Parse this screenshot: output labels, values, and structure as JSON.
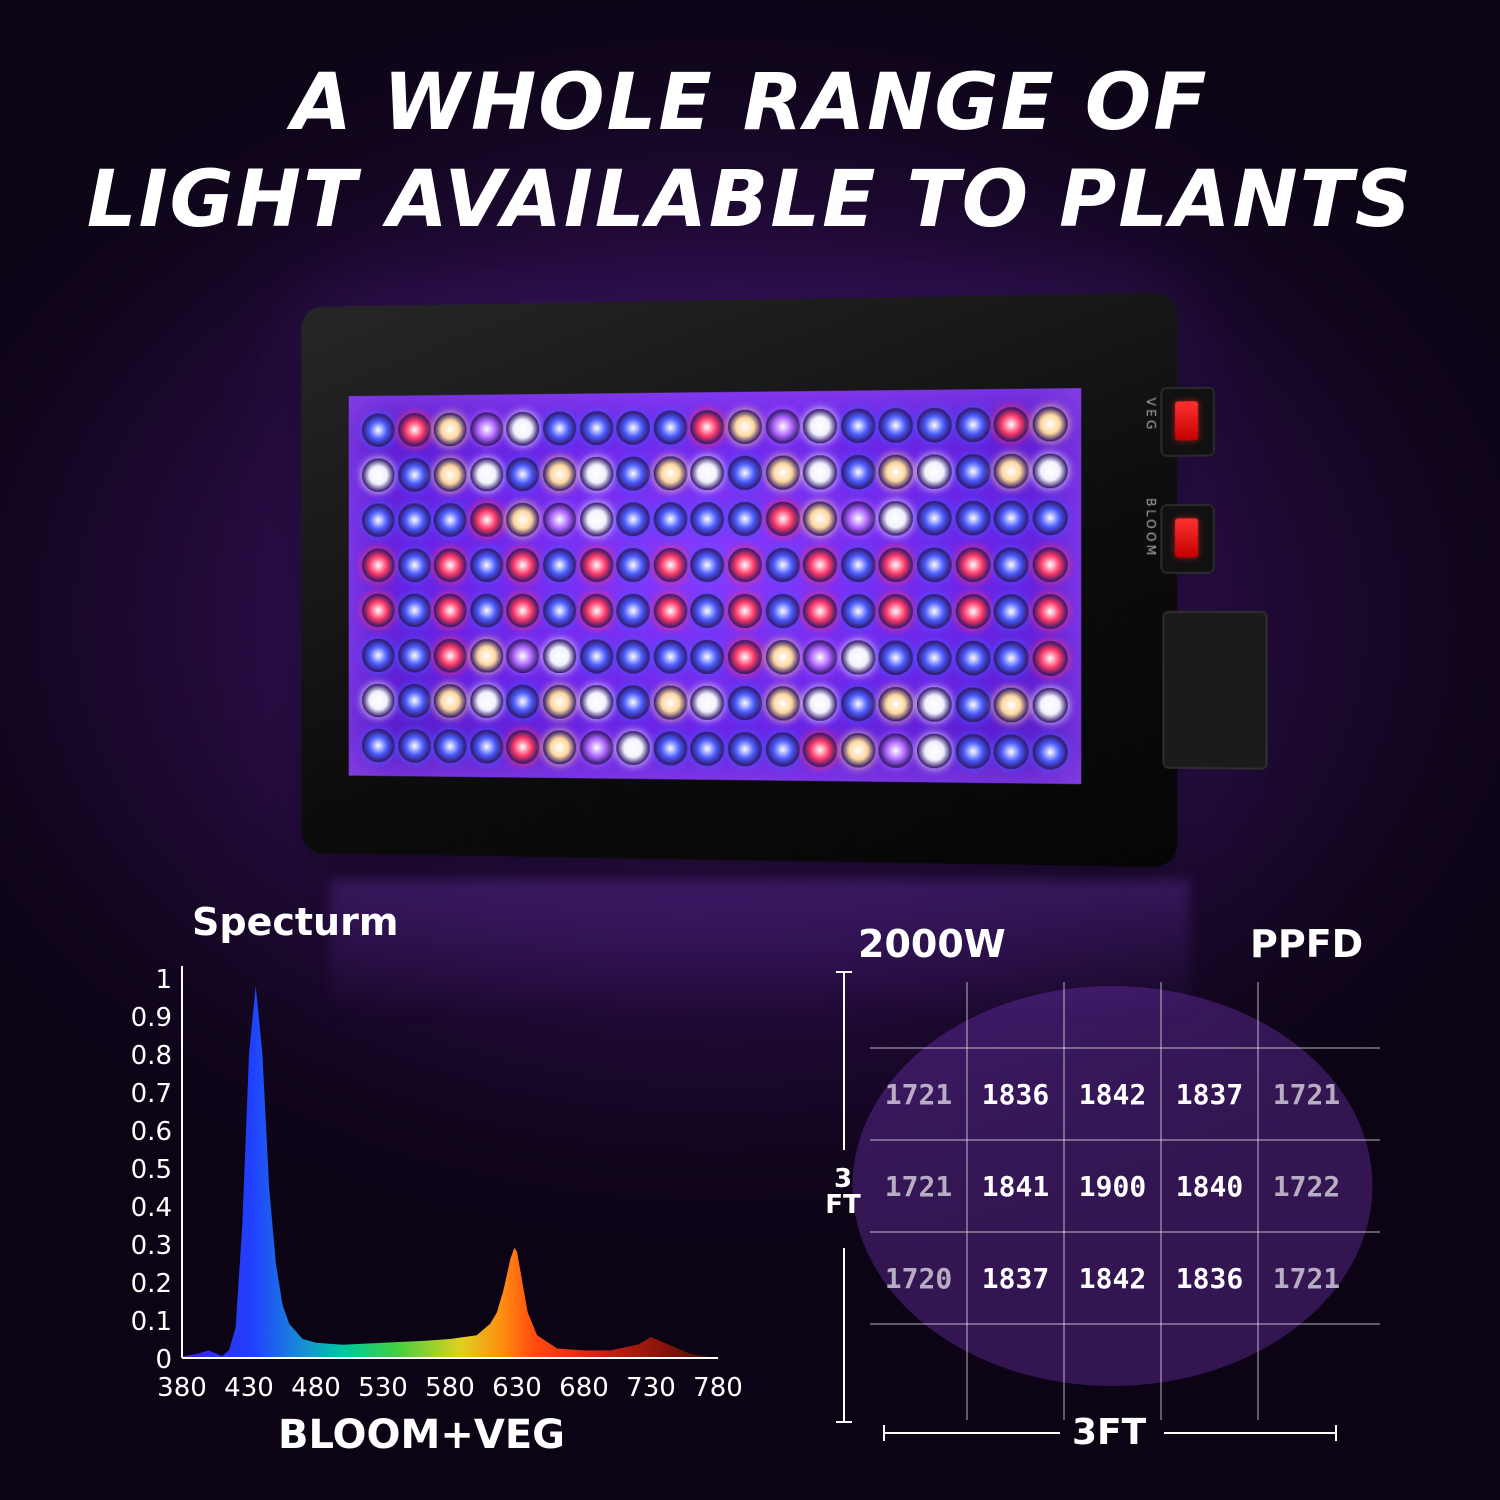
{
  "headline": {
    "line1": "A WHOLE RANGE OF",
    "line2": "LIGHT AVAILABLE TO PLANTS"
  },
  "lamp": {
    "switch_labels": [
      "VEG",
      "BLOOM"
    ],
    "led_colors": {
      "blue": "#4b5cff",
      "red": "#ff3a6a",
      "white": "#f2f2ff",
      "warm": "#ffd8a0",
      "purple": "#b066ff"
    }
  },
  "chart_data": [
    {
      "type": "area",
      "title": "Specturm",
      "xlabel": "BLOOM+VEG",
      "ylabel": "",
      "xlim": [
        380,
        780
      ],
      "ylim": [
        0,
        1
      ],
      "x_ticks": [
        380,
        430,
        480,
        530,
        580,
        630,
        680,
        730,
        780
      ],
      "y_ticks": [
        0,
        0.1,
        0.2,
        0.3,
        0.4,
        0.5,
        0.6,
        0.7,
        0.8,
        0.9,
        1
      ],
      "y_tick_labels": [
        "0",
        "0.1",
        "0.2",
        "0.3",
        "0.4",
        "0.5",
        "0.6",
        "0.7",
        "0.8",
        "0.9",
        "1"
      ],
      "grid": false,
      "x": [
        380,
        390,
        400,
        410,
        415,
        420,
        425,
        430,
        435,
        440,
        445,
        450,
        455,
        460,
        470,
        480,
        500,
        530,
        560,
        580,
        600,
        610,
        615,
        620,
        625,
        628,
        630,
        633,
        638,
        645,
        660,
        680,
        700,
        720,
        730,
        740,
        760,
        780
      ],
      "y": [
        0.005,
        0.01,
        0.02,
        0.005,
        0.02,
        0.08,
        0.35,
        0.8,
        0.98,
        0.8,
        0.45,
        0.25,
        0.14,
        0.09,
        0.05,
        0.04,
        0.035,
        0.04,
        0.045,
        0.05,
        0.06,
        0.09,
        0.12,
        0.18,
        0.26,
        0.29,
        0.28,
        0.22,
        0.12,
        0.06,
        0.025,
        0.02,
        0.02,
        0.035,
        0.055,
        0.04,
        0.01,
        0.0
      ]
    },
    {
      "type": "heatmap",
      "title": "2000W",
      "subtitle": "PPFD",
      "height_label": "3\nFT",
      "height_label_lines": [
        "3",
        "FT"
      ],
      "width_label": "3FT",
      "values": [
        [
          1721,
          1836,
          1842,
          1837,
          1721
        ],
        [
          1721,
          1841,
          1900,
          1840,
          1722
        ],
        [
          1720,
          1837,
          1842,
          1836,
          1721
        ]
      ]
    }
  ]
}
